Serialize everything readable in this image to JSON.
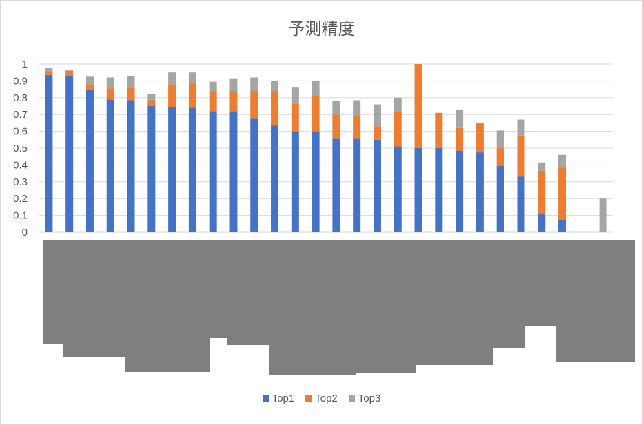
{
  "chart_data": {
    "type": "bar",
    "stacked": true,
    "title": "予測精度",
    "xlabel": "",
    "ylabel": "",
    "ylim": [
      0,
      1
    ],
    "yticks": [
      "0",
      "0.1",
      "0.2",
      "0.3",
      "0.4",
      "0.5",
      "0.6",
      "0.7",
      "0.8",
      "0.9",
      "1"
    ],
    "grid": true,
    "legend_position": "bottom",
    "series": [
      {
        "name": "Top1",
        "color": "#4472c4",
        "values": [
          0.935,
          0.93,
          0.845,
          0.79,
          0.785,
          0.75,
          0.745,
          0.74,
          0.72,
          0.72,
          0.675,
          0.635,
          0.6,
          0.6,
          0.555,
          0.555,
          0.55,
          0.51,
          0.5,
          0.5,
          0.485,
          0.475,
          0.395,
          0.33,
          0.11,
          0.075,
          0,
          0
        ]
      },
      {
        "name": "Top2",
        "color": "#ed7d31",
        "values": [
          0.02,
          0.03,
          0.035,
          0.065,
          0.075,
          0.035,
          0.135,
          0.145,
          0.12,
          0.12,
          0.165,
          0.205,
          0.165,
          0.215,
          0.145,
          0.14,
          0.08,
          0.205,
          0.5,
          0.21,
          0.135,
          0.175,
          0.105,
          0.245,
          0.255,
          0.31,
          0,
          0
        ]
      },
      {
        "name": "Top3",
        "color": "#a5a5a5",
        "values": [
          0.02,
          0.005,
          0.045,
          0.065,
          0.07,
          0.035,
          0.07,
          0.065,
          0.055,
          0.075,
          0.08,
          0.06,
          0.095,
          0.085,
          0.08,
          0.09,
          0.13,
          0.085,
          0,
          0,
          0.11,
          0,
          0.105,
          0.095,
          0.05,
          0.075,
          0,
          0.2
        ]
      }
    ]
  }
}
